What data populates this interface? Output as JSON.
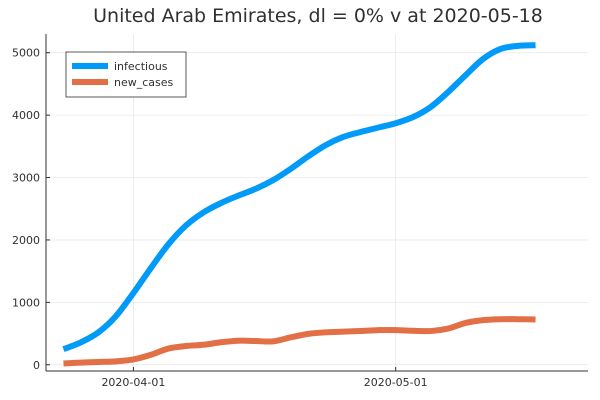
{
  "chart_data": {
    "type": "line",
    "title": "United Arab Emirates,  dl = 0% v at 2020-05-18",
    "xlabel": "",
    "ylabel": "",
    "x_axis_type": "date",
    "xlim": [
      "2020-03-22",
      "2020-05-23"
    ],
    "ylim": [
      -100,
      5300
    ],
    "x_ticks": [
      "2020-04-01",
      "2020-05-01"
    ],
    "y_ticks": [
      0,
      1000,
      2000,
      3000,
      4000,
      5000
    ],
    "grid": true,
    "legend_position": "top-left",
    "series": [
      {
        "name": "infectious",
        "color": "#009af9",
        "points": [
          [
            "2020-03-24",
            250
          ],
          [
            "2020-03-26",
            360
          ],
          [
            "2020-03-28",
            520
          ],
          [
            "2020-03-30",
            780
          ],
          [
            "2020-04-01",
            1150
          ],
          [
            "2020-04-03",
            1550
          ],
          [
            "2020-04-05",
            1930
          ],
          [
            "2020-04-07",
            2230
          ],
          [
            "2020-04-09",
            2440
          ],
          [
            "2020-04-11",
            2590
          ],
          [
            "2020-04-13",
            2710
          ],
          [
            "2020-04-15",
            2820
          ],
          [
            "2020-04-17",
            2960
          ],
          [
            "2020-04-19",
            3140
          ],
          [
            "2020-04-21",
            3340
          ],
          [
            "2020-04-23",
            3520
          ],
          [
            "2020-04-25",
            3650
          ],
          [
            "2020-04-27",
            3730
          ],
          [
            "2020-04-29",
            3800
          ],
          [
            "2020-05-01",
            3870
          ],
          [
            "2020-05-03",
            3970
          ],
          [
            "2020-05-05",
            4130
          ],
          [
            "2020-05-07",
            4370
          ],
          [
            "2020-05-09",
            4640
          ],
          [
            "2020-05-11",
            4900
          ],
          [
            "2020-05-13",
            5060
          ],
          [
            "2020-05-15",
            5110
          ],
          [
            "2020-05-17",
            5120
          ]
        ]
      },
      {
        "name": "new_cases",
        "color": "#e26f46",
        "points": [
          [
            "2020-03-24",
            20
          ],
          [
            "2020-03-26",
            35
          ],
          [
            "2020-03-28",
            45
          ],
          [
            "2020-03-30",
            55
          ],
          [
            "2020-04-01",
            85
          ],
          [
            "2020-04-03",
            160
          ],
          [
            "2020-04-05",
            260
          ],
          [
            "2020-04-07",
            300
          ],
          [
            "2020-04-09",
            320
          ],
          [
            "2020-04-11",
            360
          ],
          [
            "2020-04-13",
            385
          ],
          [
            "2020-04-15",
            380
          ],
          [
            "2020-04-17",
            375
          ],
          [
            "2020-04-19",
            440
          ],
          [
            "2020-04-21",
            495
          ],
          [
            "2020-04-23",
            520
          ],
          [
            "2020-04-25",
            530
          ],
          [
            "2020-04-27",
            540
          ],
          [
            "2020-04-29",
            555
          ],
          [
            "2020-05-01",
            555
          ],
          [
            "2020-05-03",
            545
          ],
          [
            "2020-05-05",
            540
          ],
          [
            "2020-05-07",
            580
          ],
          [
            "2020-05-09",
            670
          ],
          [
            "2020-05-11",
            715
          ],
          [
            "2020-05-13",
            730
          ],
          [
            "2020-05-15",
            730
          ],
          [
            "2020-05-17",
            725
          ]
        ]
      }
    ]
  }
}
